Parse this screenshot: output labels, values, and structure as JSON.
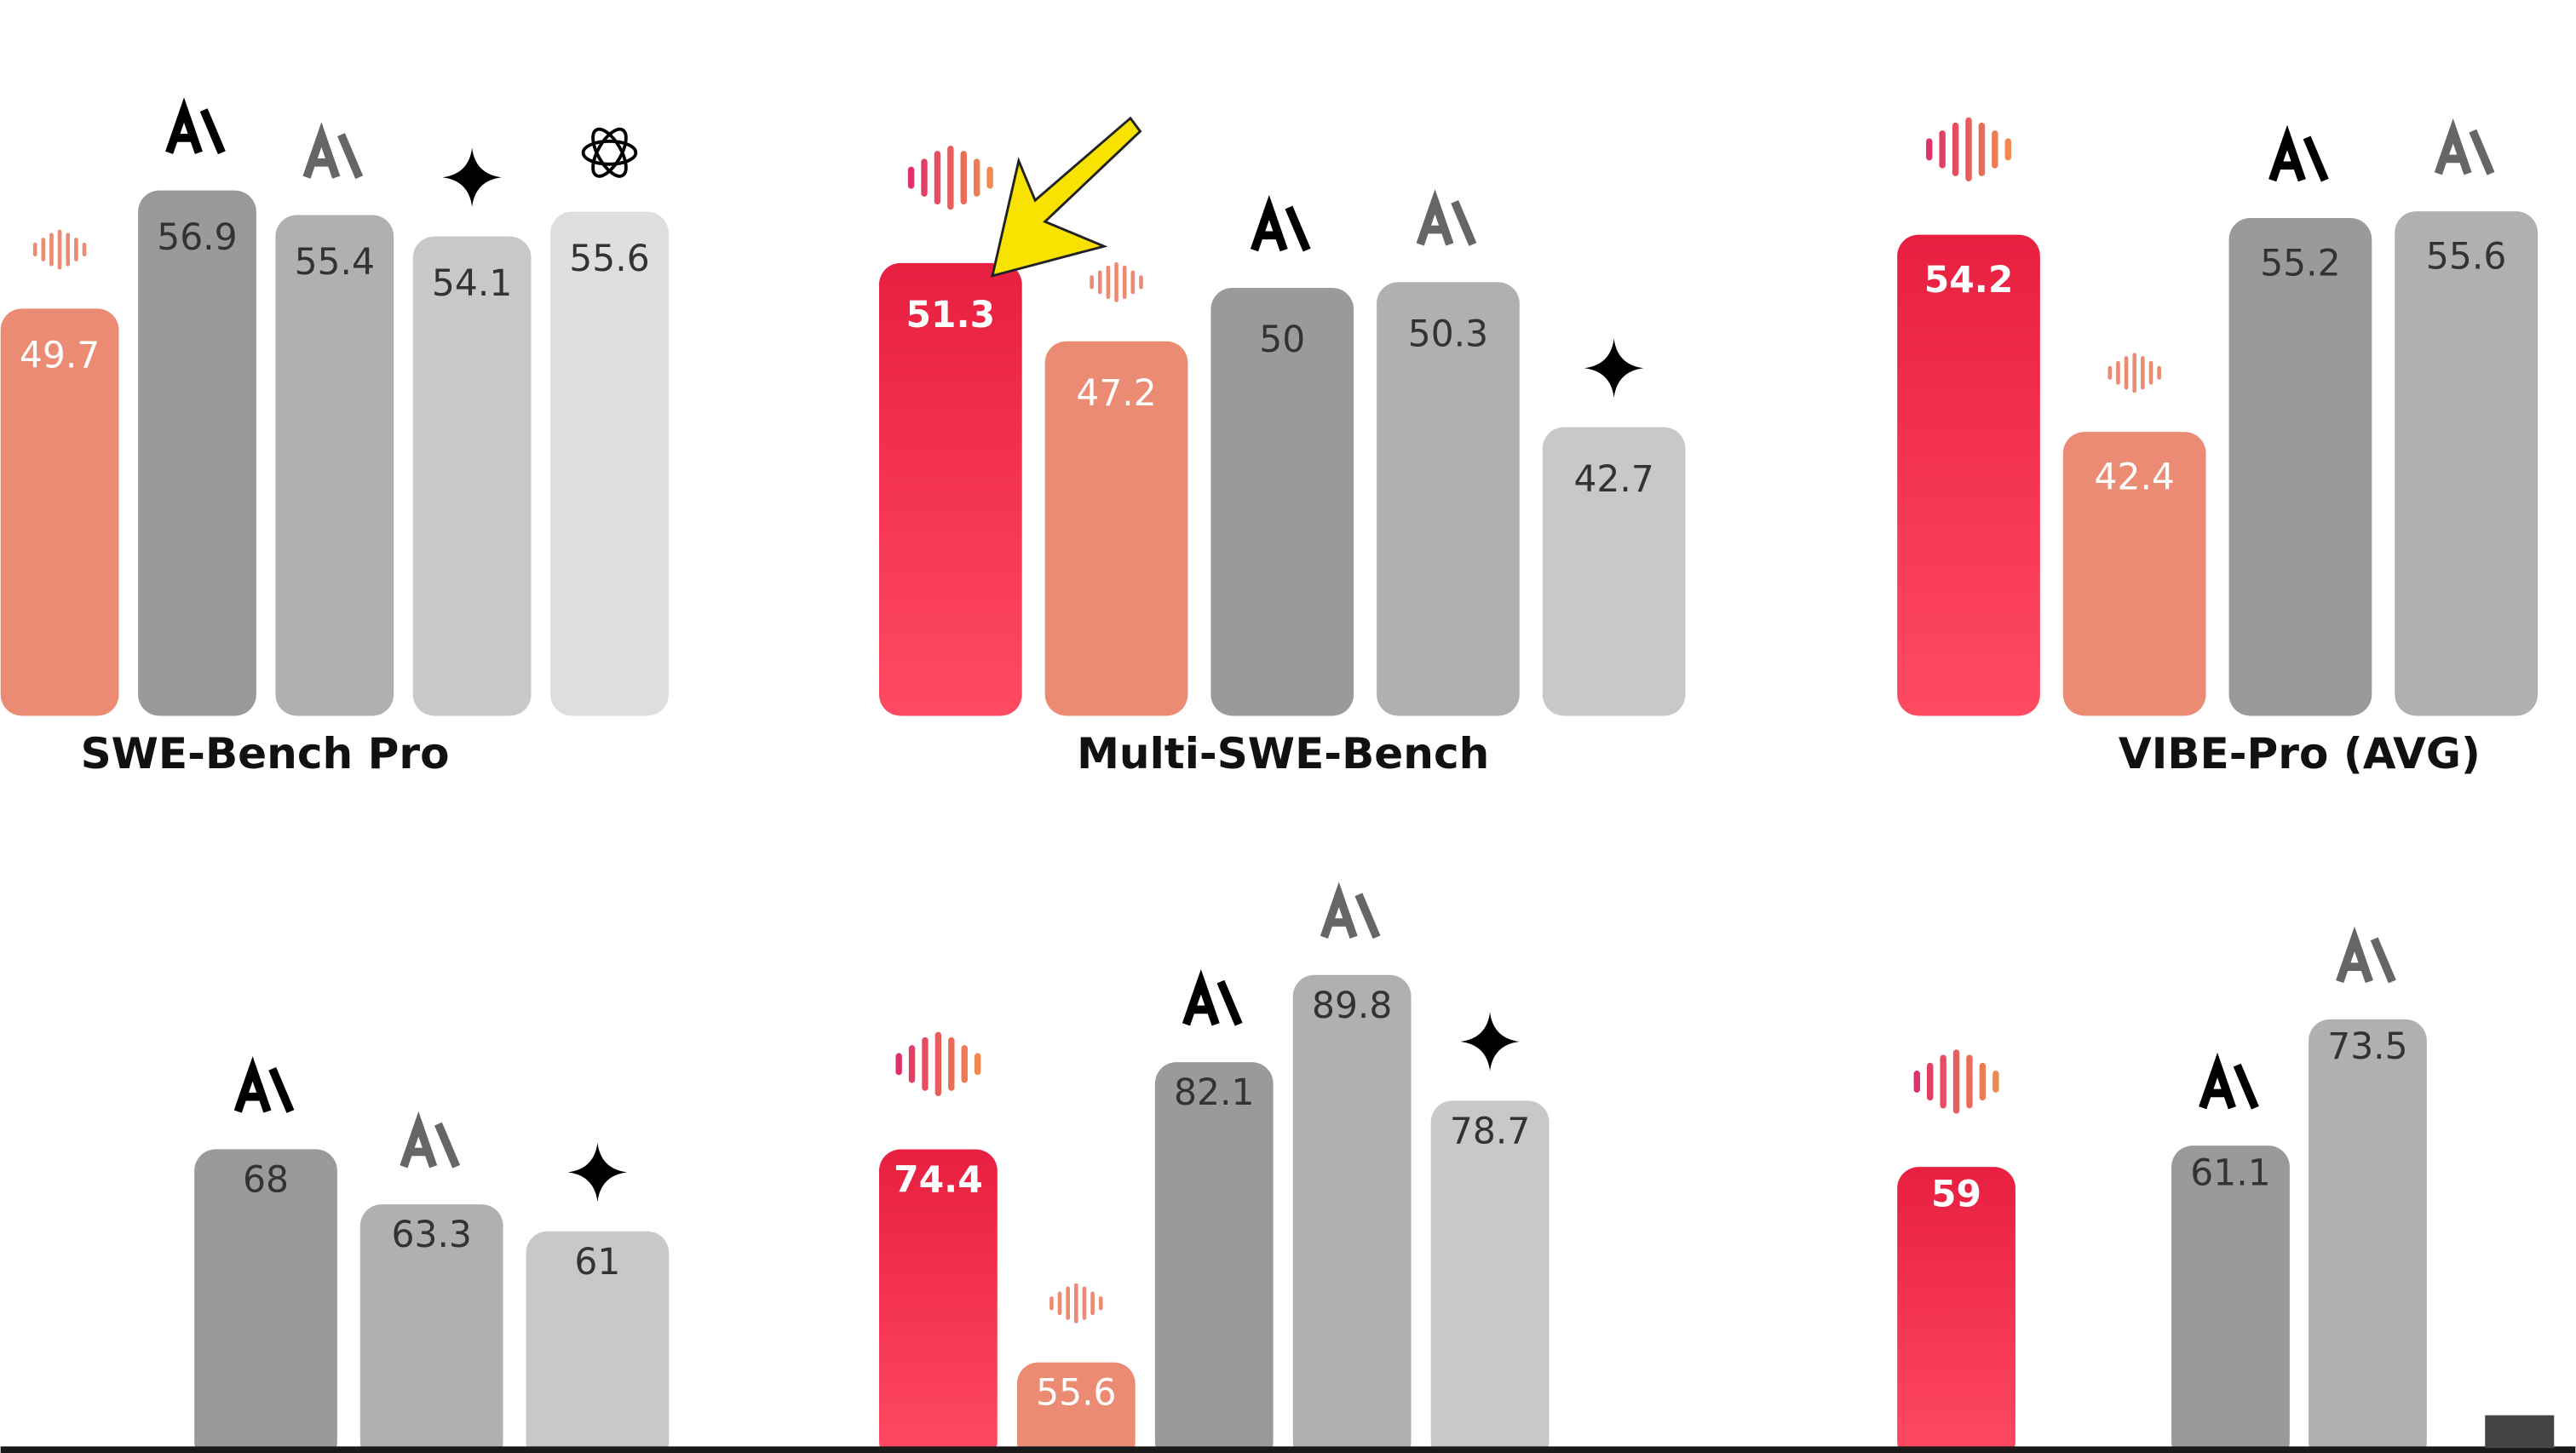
{
  "chart_data": [
    {
      "type": "bar",
      "title": "SWE-Bench Pro",
      "categories": [
        null,
        null,
        null,
        null,
        null
      ],
      "values": [
        49.7,
        56.9,
        55.4,
        54.1,
        55.6
      ],
      "colors": [
        "#eb8b73",
        "#9a9a9a",
        "#b0b0b0",
        "#c8c8c8",
        "#dedede"
      ],
      "ylim": [
        25.5,
        65.5
      ]
    },
    {
      "type": "bar",
      "title": "Multi-SWE-Bench",
      "categories": [
        null,
        null,
        null,
        null,
        null
      ],
      "values": [
        51.3,
        47.2,
        50,
        50.3,
        42.7
      ],
      "colors": [
        "#ec2647",
        "#eb8b73",
        "#9a9a9a",
        "#b0b0b0",
        "#c8c8c8"
      ],
      "ylim": [
        28.1,
        62.5
      ]
    },
    {
      "type": "bar",
      "title": "VIBE-Pro (AVG)",
      "categories": [
        null,
        null,
        null,
        null
      ],
      "values": [
        54.2,
        42.4,
        55.2,
        55.6
      ],
      "colors": [
        "#ec2647",
        "#eb8b73",
        "#9a9a9a",
        "#b0b0b0"
      ],
      "ylim": [
        26.0,
        65.3
      ]
    },
    {
      "type": "bar",
      "categories": [
        null,
        null,
        null
      ],
      "values": [
        68,
        63.3,
        61
      ],
      "colors": [
        "#9a9a9a",
        "#b0b0b0",
        "#c8c8c8"
      ],
      "ylim": [
        42.1,
        96.0
      ]
    },
    {
      "type": "bar",
      "categories": [
        null,
        null,
        null,
        null,
        null
      ],
      "values": [
        74.4,
        55.6,
        82.1,
        89.8,
        78.7
      ],
      "colors": [
        "#ec2647",
        "#eb8b73",
        "#9a9a9a",
        "#b0b0b0",
        "#c8c8c8"
      ],
      "ylim": [
        47.6,
        103.4
      ]
    },
    {
      "type": "bar",
      "categories": [
        null,
        null,
        null,
        null
      ],
      "values": [
        59,
        null,
        61.1,
        73.5
      ],
      "colors": [
        "#ec2647",
        "#eb8b73",
        "#9a9a9a",
        "#b0b0b0"
      ],
      "ylim": [
        30.9,
        93.0
      ]
    }
  ]
}
